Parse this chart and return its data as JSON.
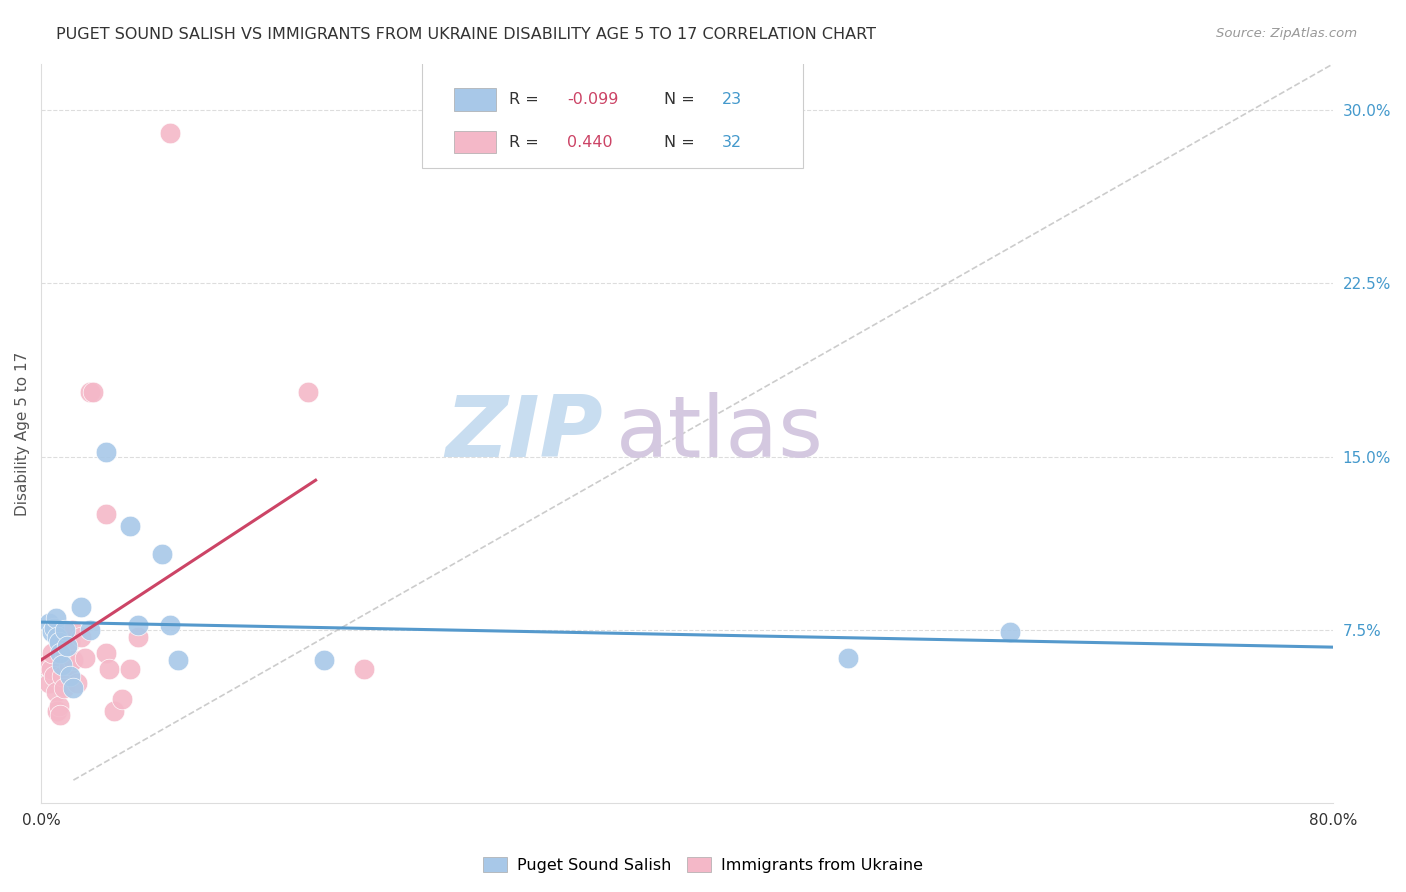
{
  "title": "PUGET SOUND SALISH VS IMMIGRANTS FROM UKRAINE DISABILITY AGE 5 TO 17 CORRELATION CHART",
  "source": "Source: ZipAtlas.com",
  "ylabel": "Disability Age 5 to 17",
  "xlim": [
    0.0,
    0.8
  ],
  "ylim": [
    0.0,
    0.32
  ],
  "xticks": [
    0.0,
    0.2,
    0.4,
    0.6,
    0.8
  ],
  "xticklabels": [
    "0.0%",
    "",
    "",
    "",
    "80.0%"
  ],
  "yticks_right": [
    0.075,
    0.15,
    0.225,
    0.3
  ],
  "ytick_right_labels": [
    "7.5%",
    "15.0%",
    "22.5%",
    "30.0%"
  ],
  "grid_color": "#dddddd",
  "blue_color": "#a8c8e8",
  "pink_color": "#f4b8c8",
  "blue_line_color": "#5599cc",
  "pink_line_color": "#cc4466",
  "diag_line_color": "#cccccc",
  "R_blue": -0.099,
  "N_blue": 23,
  "R_pink": 0.44,
  "N_pink": 32,
  "blue_points_x": [
    0.005,
    0.007,
    0.008,
    0.009,
    0.01,
    0.011,
    0.012,
    0.013,
    0.015,
    0.016,
    0.018,
    0.02,
    0.025,
    0.03,
    0.04,
    0.055,
    0.06,
    0.075,
    0.08,
    0.085,
    0.175,
    0.5,
    0.6
  ],
  "blue_points_y": [
    0.078,
    0.074,
    0.076,
    0.08,
    0.072,
    0.07,
    0.065,
    0.06,
    0.075,
    0.068,
    0.055,
    0.05,
    0.085,
    0.075,
    0.152,
    0.12,
    0.077,
    0.108,
    0.077,
    0.062,
    0.062,
    0.063,
    0.074
  ],
  "pink_points_x": [
    0.003,
    0.005,
    0.006,
    0.007,
    0.008,
    0.009,
    0.01,
    0.011,
    0.012,
    0.013,
    0.014,
    0.015,
    0.016,
    0.017,
    0.018,
    0.019,
    0.02,
    0.022,
    0.025,
    0.027,
    0.03,
    0.032,
    0.04,
    0.04,
    0.042,
    0.045,
    0.05,
    0.055,
    0.06,
    0.08,
    0.165,
    0.2
  ],
  "pink_points_y": [
    0.06,
    0.052,
    0.058,
    0.065,
    0.055,
    0.048,
    0.04,
    0.042,
    0.038,
    0.055,
    0.05,
    0.065,
    0.068,
    0.06,
    0.07,
    0.075,
    0.062,
    0.052,
    0.072,
    0.063,
    0.178,
    0.178,
    0.125,
    0.065,
    0.058,
    0.04,
    0.045,
    0.058,
    0.072,
    0.29,
    0.178,
    0.058
  ],
  "bg_color": "#ffffff",
  "title_color": "#333333",
  "axis_label_color": "#555555",
  "right_axis_color": "#4499cc",
  "footer_legend_items": [
    "Puget Sound Salish",
    "Immigrants from Ukraine"
  ],
  "watermark_zip": "ZIP",
  "watermark_atlas": "atlas",
  "watermark_color_zip": "#c8ddf0",
  "watermark_color_atlas": "#d4c8e0"
}
